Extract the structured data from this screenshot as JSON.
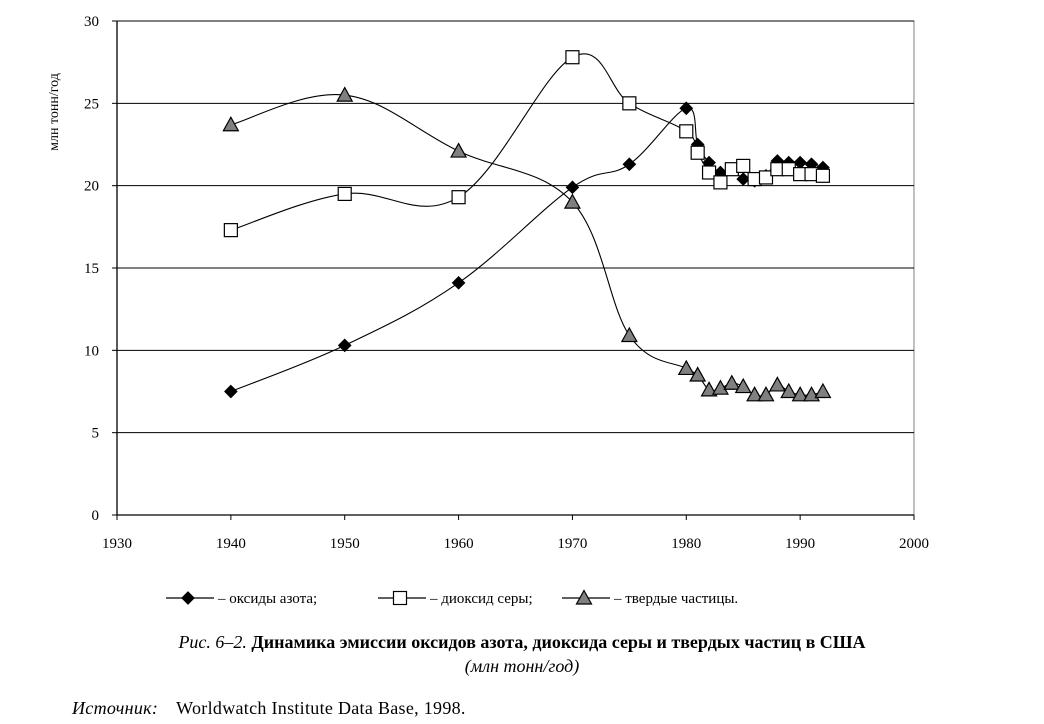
{
  "chart_data": {
    "type": "line",
    "ylabel": "млн тонн/год",
    "xlabel": "",
    "xlim": [
      1930,
      2000
    ],
    "ylim": [
      0,
      30
    ],
    "x_ticks": [
      "1930",
      "1940",
      "1950",
      "1960",
      "1970",
      "1980",
      "1990",
      "2000"
    ],
    "y_ticks": [
      "0",
      "5",
      "10",
      "15",
      "20",
      "25",
      "30"
    ],
    "grid": "horizontal",
    "legend_position": "bottom",
    "series": [
      {
        "name": "– оксиды азота;",
        "marker": "diamond",
        "fill": "#000000",
        "points": [
          [
            1940,
            7.5
          ],
          [
            1950,
            10.3
          ],
          [
            1960,
            14.1
          ],
          [
            1970,
            19.9
          ],
          [
            1975,
            21.3
          ],
          [
            1980,
            24.7
          ],
          [
            1981,
            22.5
          ],
          [
            1982,
            21.4
          ],
          [
            1983,
            20.8
          ],
          [
            1984,
            21.0
          ],
          [
            1985,
            20.4
          ],
          [
            1986,
            20.3
          ],
          [
            1987,
            20.6
          ],
          [
            1988,
            21.5
          ],
          [
            1989,
            21.4
          ],
          [
            1990,
            21.4
          ],
          [
            1991,
            21.3
          ],
          [
            1992,
            21.1
          ]
        ]
      },
      {
        "name": "– диоксид серы;",
        "marker": "square",
        "fill": "#ffffff",
        "points": [
          [
            1940,
            17.3
          ],
          [
            1950,
            19.5
          ],
          [
            1960,
            19.3
          ],
          [
            1970,
            27.8
          ],
          [
            1975,
            25.0
          ],
          [
            1980,
            23.3
          ],
          [
            1981,
            22.0
          ],
          [
            1982,
            20.8
          ],
          [
            1983,
            20.2
          ],
          [
            1984,
            21.0
          ],
          [
            1985,
            21.2
          ],
          [
            1986,
            20.4
          ],
          [
            1987,
            20.5
          ],
          [
            1988,
            21.0
          ],
          [
            1989,
            21.0
          ],
          [
            1990,
            20.7
          ],
          [
            1991,
            20.7
          ],
          [
            1992,
            20.6
          ]
        ]
      },
      {
        "name": "– твердые частицы.",
        "marker": "triangle",
        "fill": "#808080",
        "points": [
          [
            1940,
            23.7
          ],
          [
            1950,
            25.5
          ],
          [
            1960,
            22.1
          ],
          [
            1970,
            19.0
          ],
          [
            1975,
            10.9
          ],
          [
            1980,
            8.9
          ],
          [
            1981,
            8.5
          ],
          [
            1982,
            7.6
          ],
          [
            1983,
            7.7
          ],
          [
            1984,
            8.0
          ],
          [
            1985,
            7.8
          ],
          [
            1986,
            7.3
          ],
          [
            1987,
            7.3
          ],
          [
            1988,
            7.9
          ],
          [
            1989,
            7.5
          ],
          [
            1990,
            7.3
          ],
          [
            1991,
            7.3
          ],
          [
            1992,
            7.5
          ]
        ]
      }
    ]
  },
  "caption": {
    "prefix": "Рис. 6–2.",
    "title": "Динамика эмиссии оксидов азота, диоксида серы и твердых частиц в США",
    "unit": "(млн тонн/год)"
  },
  "source": {
    "label": "Источник:",
    "text": "Worldwatch Institute Data Base, 1998."
  }
}
